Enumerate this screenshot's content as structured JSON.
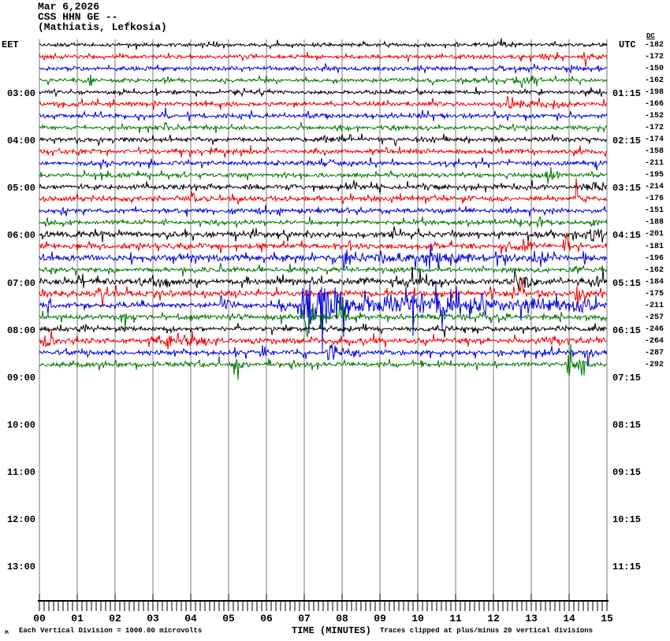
{
  "title": {
    "date": "Mar 6,2026",
    "station": "CSS HHN GE --",
    "location": "(Mathiatis, Lefkosia)"
  },
  "axes": {
    "left_header": "EET",
    "right_header": "UTC",
    "dc_header": "DC",
    "left_labels": [
      "03:00",
      "04:00",
      "05:00",
      "06:00",
      "07:00",
      "08:00",
      "09:00",
      "10:00",
      "11:00",
      "12:00",
      "13:00"
    ],
    "right_labels": [
      "01:15",
      "02:15",
      "03:15",
      "04:15",
      "05:15",
      "06:15",
      "07:15",
      "08:15",
      "09:15",
      "10:15",
      "11:15"
    ],
    "x_ticks": [
      "00",
      "01",
      "02",
      "03",
      "04",
      "05",
      "06",
      "07",
      "08",
      "09",
      "10",
      "11",
      "12",
      "13",
      "14",
      "15"
    ],
    "x_title": "TIME (MINUTES)"
  },
  "footer": {
    "glyph": "ʍ",
    "left": "Each Vertical Division = 1000.00 microvolts",
    "right": "Traces clipped at plus/minus 20 vertical divisions"
  },
  "colors": {
    "black": "#000000",
    "red": "#ee0000",
    "blue": "#0000dd",
    "green": "#007700",
    "grid": "#7a7a7a",
    "axis": "#000000",
    "text": "#000000"
  },
  "chart_data": {
    "type": "line",
    "subtype": "seismogram-helicorder",
    "x_label": "TIME (MINUTES)",
    "x_range": [
      0,
      15
    ],
    "minutes_per_line": 15,
    "hours_shown_eet": [
      "02",
      "03",
      "04",
      "05",
      "06",
      "07",
      "08",
      "09",
      "10",
      "11",
      "12",
      "13"
    ],
    "traces_recorded": 28,
    "clip_note": "Traces clipped at plus/minus 20 vertical divisions",
    "division_microvolts": 1000.0,
    "rows": [
      {
        "eet_start": "02:00",
        "color": "black",
        "dc": "-182",
        "base": 2.0,
        "events": [
          [
            12.08,
            12.5,
            7
          ]
        ]
      },
      {
        "eet_start": "02:15",
        "color": "red",
        "dc": "-172",
        "base": 2.2,
        "events": [
          [
            13.2,
            13.7,
            3.5
          ],
          [
            14.35,
            14.95,
            3.5
          ]
        ]
      },
      {
        "eet_start": "02:30",
        "color": "blue",
        "dc": "-150",
        "base": 2.3,
        "events": [
          [
            12.15,
            12.4,
            4
          ],
          [
            14.0,
            14.25,
            4
          ],
          [
            14.75,
            15,
            4.5
          ]
        ]
      },
      {
        "eet_start": "02:45",
        "color": "green",
        "dc": "-162",
        "base": 2.2,
        "events": [
          [
            1.28,
            1.5,
            9
          ],
          [
            12.5,
            13.3,
            3,
            "f"
          ]
        ]
      },
      {
        "eet_start": "03:00",
        "color": "black",
        "dc": "-198",
        "base": 2.1,
        "events": [
          [
            5.85,
            6.05,
            4
          ]
        ]
      },
      {
        "eet_start": "03:15",
        "color": "red",
        "dc": "-166",
        "base": 2.4,
        "events": [
          [
            12.3,
            13.5,
            4,
            "f"
          ],
          [
            13.55,
            14.05,
            13
          ]
        ]
      },
      {
        "eet_start": "03:30",
        "color": "blue",
        "dc": "-152",
        "base": 2.4,
        "events": [
          [
            3.2,
            3.45,
            4
          ],
          [
            9.2,
            9.4,
            4
          ]
        ]
      },
      {
        "eet_start": "03:45",
        "color": "green",
        "dc": "-172",
        "base": 2.2,
        "events": [
          [
            3.3,
            3.6,
            5
          ]
        ]
      },
      {
        "eet_start": "04:00",
        "color": "black",
        "dc": "-174",
        "base": 2.4,
        "events": [
          [
            7.5,
            7.8,
            4
          ]
        ]
      },
      {
        "eet_start": "04:15",
        "color": "red",
        "dc": "-158",
        "base": 2.6,
        "events": [
          [
            4.5,
            4.8,
            4
          ]
        ]
      },
      {
        "eet_start": "04:30",
        "color": "blue",
        "dc": "-211",
        "base": 2.4,
        "events": [
          [
            10.7,
            10.95,
            4
          ],
          [
            14.6,
            14.95,
            5
          ]
        ]
      },
      {
        "eet_start": "04:45",
        "color": "green",
        "dc": "-195",
        "base": 2.4,
        "events": [
          [
            6.4,
            6.55,
            4
          ],
          [
            13.35,
            13.9,
            11
          ]
        ]
      },
      {
        "eet_start": "05:00",
        "color": "black",
        "dc": "-214",
        "base": 2.7,
        "events": [
          [
            3.75,
            3.95,
            5
          ],
          [
            14.3,
            15,
            5,
            "f"
          ]
        ]
      },
      {
        "eet_start": "05:15",
        "color": "red",
        "dc": "-176",
        "base": 2.8,
        "events": [
          [
            4.0,
            4.2,
            12
          ],
          [
            14.15,
            14.55,
            7
          ]
        ]
      },
      {
        "eet_start": "05:30",
        "color": "blue",
        "dc": "-151",
        "base": 2.4,
        "events": [
          [
            0.48,
            0.68,
            11
          ],
          [
            12.4,
            12.55,
            5
          ]
        ]
      },
      {
        "eet_start": "05:45",
        "color": "green",
        "dc": "-188",
        "base": 2.4,
        "events": [
          [
            0.12,
            0.3,
            8
          ],
          [
            13.15,
            13.55,
            7
          ],
          [
            14.55,
            14.8,
            5
          ]
        ]
      },
      {
        "eet_start": "06:00",
        "color": "black",
        "dc": "-201",
        "base": 3.2,
        "events": [
          [
            0.05,
            0.35,
            5
          ],
          [
            9.3,
            9.45,
            6
          ],
          [
            14.4,
            15,
            6,
            "f"
          ]
        ]
      },
      {
        "eet_start": "06:15",
        "color": "red",
        "dc": "-181",
        "base": 3.0,
        "events": [
          [
            2.4,
            2.6,
            6
          ],
          [
            4.3,
            4.45,
            6
          ],
          [
            7.75,
            7.95,
            8
          ],
          [
            8.15,
            8.3,
            8
          ],
          [
            12.2,
            13.3,
            4,
            "f"
          ],
          [
            13.85,
            14.05,
            14
          ]
        ]
      },
      {
        "eet_start": "06:30",
        "color": "blue",
        "dc": "-196",
        "base": 3.4,
        "events": [
          [
            7.95,
            8.7,
            13
          ],
          [
            8.7,
            12,
            4,
            "f"
          ],
          [
            10.3,
            10.5,
            16
          ],
          [
            13.05,
            13.25,
            6
          ]
        ]
      },
      {
        "eet_start": "06:45",
        "color": "green",
        "dc": "-162",
        "base": 2.7,
        "events": [
          [
            14.1,
            14.4,
            6
          ]
        ]
      },
      {
        "eet_start": "07:00",
        "color": "black",
        "dc": "-184",
        "base": 3.2,
        "events": [
          [
            2.6,
            3.7,
            4,
            "f"
          ],
          [
            9.4,
            10.6,
            4,
            "f"
          ],
          [
            12.35,
            13.15,
            5,
            "f"
          ],
          [
            14.55,
            15,
            5,
            "f"
          ]
        ]
      },
      {
        "eet_start": "07:15",
        "color": "red",
        "dc": "-175",
        "base": 3.2,
        "events": [
          [
            1.5,
            2.05,
            5
          ],
          [
            12.72,
            12.9,
            17
          ],
          [
            13.2,
            13.65,
            13
          ],
          [
            14.15,
            14.6,
            11
          ]
        ]
      },
      {
        "eet_start": "07:30",
        "color": "blue",
        "dc": "-211",
        "base": 2.8,
        "clip": 57,
        "events": [
          [
            0.1,
            0.45,
            6
          ],
          [
            4.75,
            5.25,
            11
          ],
          [
            6.25,
            6.9,
            9
          ],
          [
            6.88,
            8.8,
            52
          ],
          [
            8.6,
            11.2,
            13,
            "f"
          ],
          [
            11.2,
            15,
            7,
            "f"
          ]
        ]
      },
      {
        "eet_start": "07:45",
        "color": "green",
        "dc": "-257",
        "base": 2.9,
        "events": [
          [
            2.15,
            2.4,
            6
          ],
          [
            6.95,
            7.7,
            10
          ],
          [
            7.9,
            8.35,
            9
          ],
          [
            12.1,
            12.55,
            5
          ]
        ]
      },
      {
        "eet_start": "08:00",
        "color": "black",
        "dc": "-246",
        "base": 2.6,
        "events": [
          [
            1.05,
            1.4,
            6
          ],
          [
            10.6,
            11.0,
            4
          ],
          [
            14.5,
            14.75,
            4
          ]
        ]
      },
      {
        "eet_start": "08:15",
        "color": "red",
        "dc": "-264",
        "base": 3.0,
        "events": [
          [
            0.08,
            0.6,
            10
          ],
          [
            2.9,
            4.6,
            4,
            "f"
          ],
          [
            13.2,
            14.2,
            3,
            "f"
          ]
        ]
      },
      {
        "eet_start": "08:30",
        "color": "blue",
        "dc": "-287",
        "base": 2.5,
        "events": [
          [
            1.25,
            1.5,
            4
          ],
          [
            5.85,
            6.25,
            6
          ],
          [
            7.55,
            8.45,
            11
          ],
          [
            12.0,
            12.35,
            6
          ],
          [
            13.5,
            13.65,
            9
          ],
          [
            14.45,
            14.65,
            19
          ]
        ]
      },
      {
        "eet_start": "08:45",
        "color": "green",
        "dc": "-292",
        "base": 2.6,
        "events": [
          [
            4.7,
            4.85,
            7
          ],
          [
            5.1,
            5.55,
            11
          ],
          [
            13.9,
            14.5,
            16
          ]
        ]
      }
    ]
  }
}
